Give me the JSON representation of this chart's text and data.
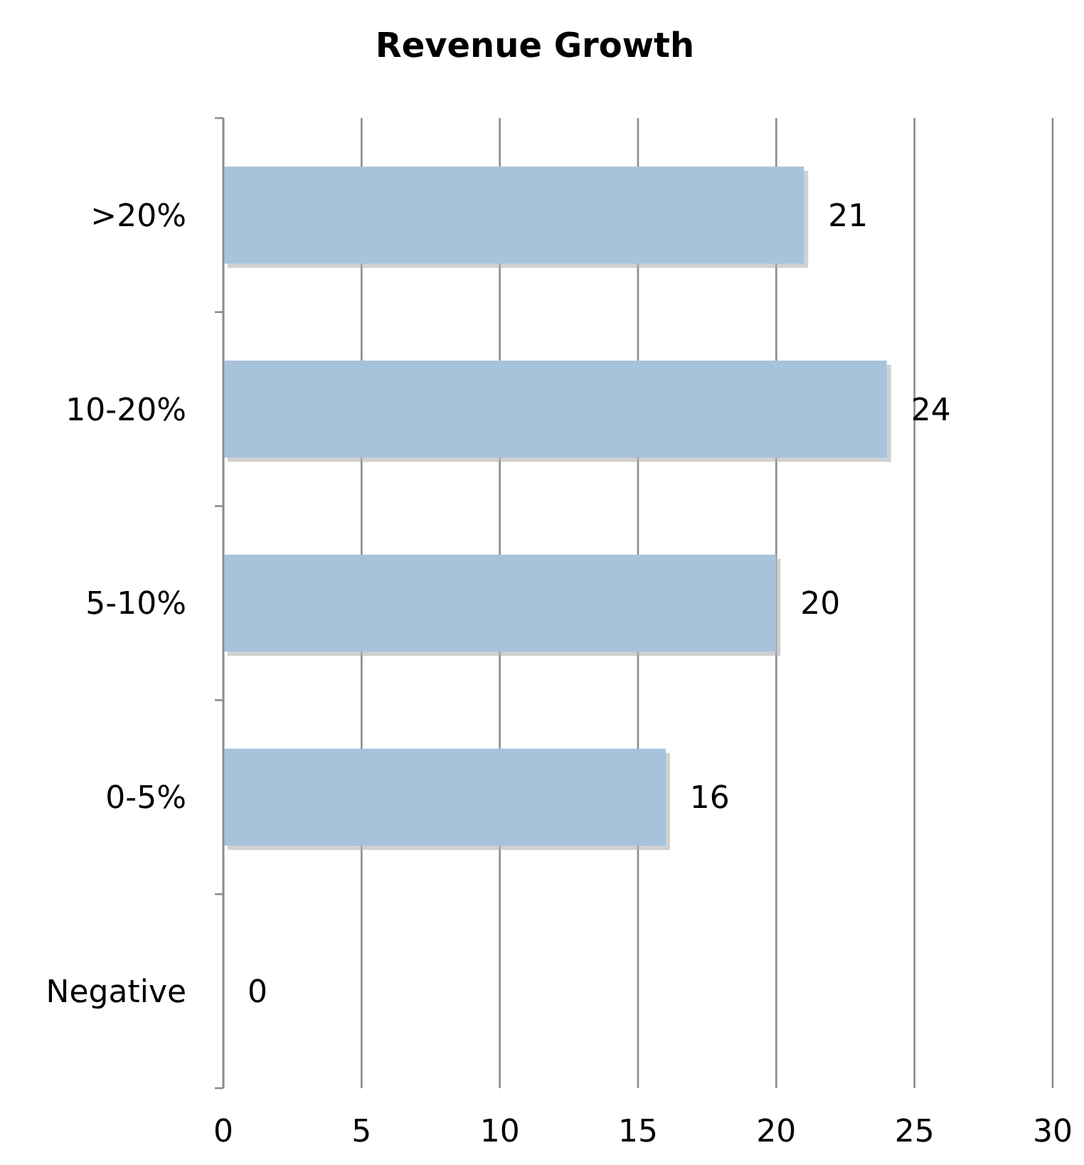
{
  "chart_data": {
    "type": "bar",
    "orientation": "horizontal",
    "title": "Revenue Growth",
    "categories": [
      ">20%",
      "10-20%",
      "5-10%",
      "0-5%",
      "Negative"
    ],
    "values": [
      21,
      24,
      20,
      16,
      0
    ],
    "color": "#a7c3db",
    "xlim": [
      0,
      30
    ],
    "xticks": [
      0,
      5,
      10,
      15,
      20,
      25,
      30
    ],
    "grid": "x",
    "data_labels": true
  }
}
